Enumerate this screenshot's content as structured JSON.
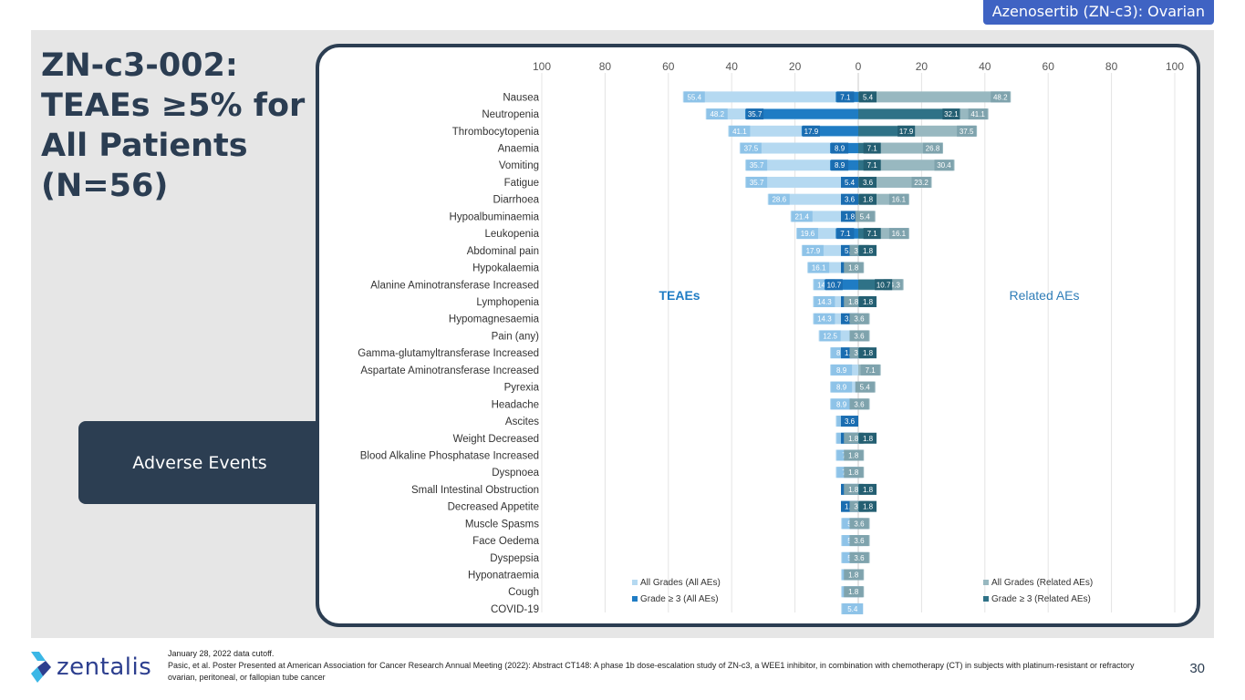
{
  "header": {
    "tag": "Azenosertib (ZN-c3): Ovarian"
  },
  "slide": {
    "title": "ZN-c3-002: TEAEs ≥5% for All Patients (N=56)",
    "side_box": "Adverse Events"
  },
  "colors": {
    "teae_all": "#b5d9f1",
    "teae_g3": "#1f7cc4",
    "rel_all": "#98b8c0",
    "rel_g3": "#2f7287",
    "dark": "#2c3e52",
    "tag_bg": "#3f63c3"
  },
  "chart_data": {
    "type": "bar",
    "orientation": "horizontal-butterfly",
    "left_label": "TEAEs",
    "right_label": "Related AEs",
    "axis_ticks_left": [
      "100",
      "80",
      "60",
      "40",
      "20",
      "0"
    ],
    "axis_ticks_right": [
      "20",
      "40",
      "60",
      "80",
      "100"
    ],
    "xlim": [
      0,
      100
    ],
    "categories": [
      "Nausea",
      "Neutropenia",
      "Thrombocytopenia",
      "Anaemia",
      "Vomiting",
      "Fatigue",
      "Diarrhoea",
      "Hypoalbuminaemia",
      "Leukopenia",
      "Abdominal pain",
      "Hypokalaemia",
      "Alanine Aminotransferase Increased",
      "Lymphopenia",
      "Hypomagnesaemia",
      "Pain (any)",
      "Gamma-glutamyltransferase Increased",
      "Aspartate Aminotransferase Increased",
      "Pyrexia",
      "Headache",
      "Ascites",
      "Weight Decreased",
      "Blood Alkaline Phosphatase Increased",
      "Dyspnoea",
      "Small Intestinal Obstruction",
      "Decreased Appetite",
      "Muscle Spasms",
      "Face Oedema",
      "Dyspepsia",
      "Hyponatraemia",
      "Cough",
      "COVID-19"
    ],
    "series": [
      {
        "name": "All Grades (All AEs)",
        "side": "left",
        "values": [
          55.4,
          48.2,
          41.1,
          37.5,
          35.7,
          35.7,
          28.6,
          21.4,
          19.6,
          17.9,
          16.1,
          14.3,
          14.3,
          14.3,
          12.5,
          8.9,
          8.9,
          8.9,
          8.9,
          7.1,
          7.1,
          7.1,
          7.1,
          5.4,
          5.4,
          5.4,
          5.4,
          5.4,
          5.4,
          5.4,
          5.4
        ]
      },
      {
        "name": "Grade ≥ 3 (All AEs)",
        "side": "left",
        "values": [
          7.1,
          35.7,
          17.9,
          8.9,
          8.9,
          5.4,
          3.6,
          1.8,
          7.1,
          5.4,
          5.4,
          10.7,
          5.4,
          3.6,
          null,
          1.8,
          null,
          null,
          null,
          3.6,
          1.8,
          null,
          null,
          5.4,
          1.8,
          null,
          null,
          null,
          null,
          null,
          null
        ]
      },
      {
        "name": "All Grades (Related AEs)",
        "side": "right",
        "values": [
          48.2,
          41.1,
          37.5,
          26.8,
          30.4,
          23.2,
          16.1,
          5.4,
          16.1,
          3.6,
          1.8,
          14.3,
          1.8,
          3.6,
          3.6,
          3.6,
          7.1,
          5.4,
          3.6,
          null,
          1.8,
          1.8,
          1.8,
          1.8,
          3.6,
          3.6,
          3.6,
          3.6,
          1.8,
          1.8,
          null
        ]
      },
      {
        "name": "Grade ≥ 3 (Related AEs)",
        "side": "right",
        "values": [
          5.4,
          32.1,
          17.9,
          7.1,
          7.1,
          3.6,
          1.8,
          null,
          7.1,
          1.8,
          null,
          10.7,
          1.8,
          null,
          null,
          1.8,
          null,
          null,
          null,
          null,
          1.8,
          null,
          null,
          1.8,
          1.8,
          null,
          null,
          null,
          null,
          null,
          null
        ]
      }
    ]
  },
  "footer": {
    "logo": "zentalis",
    "note_line1": "January 28, 2022 data cutoff.",
    "note_line2": "Pasic, et al. Poster Presented at American Association for Cancer Research Annual Meeting (2022): Abstract CT148: A phase 1b dose-escalation study of ZN-c3, a WEE1 inhibitor, in combination with chemotherapy (CT) in subjects with platinum-resistant or refractory ovarian, peritoneal, or fallopian tube cancer",
    "page": "30"
  }
}
